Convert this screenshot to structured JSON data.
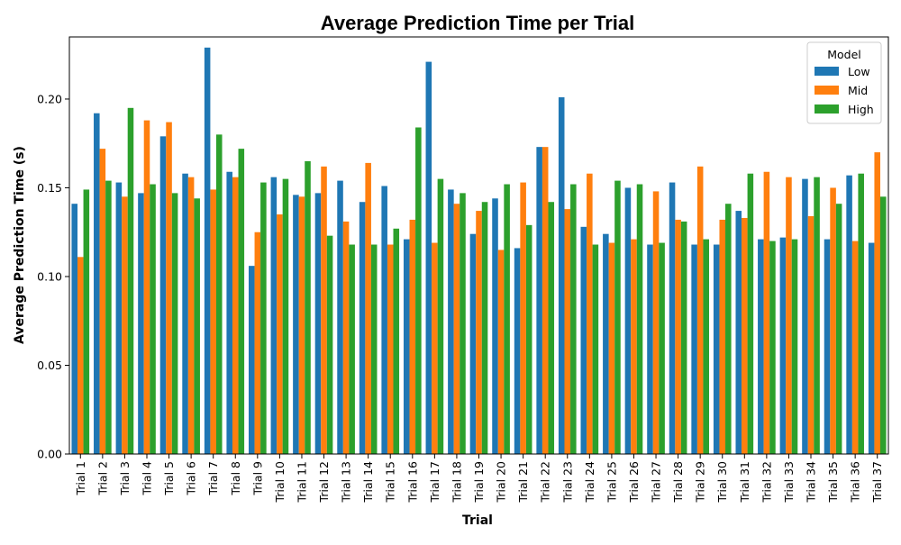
{
  "chart_data": {
    "type": "bar",
    "title": "Average Prediction Time per Trial",
    "xlabel": "Trial",
    "ylabel": "Average Prediction Time (s)",
    "ylim": [
      0,
      0.235
    ],
    "yticks": [
      "0.00",
      "0.05",
      "0.10",
      "0.15",
      "0.20"
    ],
    "grid": false,
    "legend": {
      "title": "Model",
      "placement": "top-right"
    },
    "categories": [
      "Trial 1",
      "Trial 2",
      "Trial 3",
      "Trial 4",
      "Trial 5",
      "Trial 6",
      "Trial 7",
      "Trial 8",
      "Trial 9",
      "Trial 10",
      "Trial 11",
      "Trial 12",
      "Trial 13",
      "Trial 14",
      "Trial 15",
      "Trial 16",
      "Trial 17",
      "Trial 18",
      "Trial 19",
      "Trial 20",
      "Trial 21",
      "Trial 22",
      "Trial 23",
      "Trial 24",
      "Trial 25",
      "Trial 26",
      "Trial 27",
      "Trial 28",
      "Trial 29",
      "Trial 30",
      "Trial 31",
      "Trial 32",
      "Trial 33",
      "Trial 34",
      "Trial 35",
      "Trial 36",
      "Trial 37"
    ],
    "series": [
      {
        "name": "Low",
        "color": "#1f77b4",
        "values": [
          0.141,
          0.192,
          0.153,
          0.147,
          0.179,
          0.158,
          0.229,
          0.159,
          0.106,
          0.156,
          0.146,
          0.147,
          0.154,
          0.142,
          0.151,
          0.121,
          0.221,
          0.149,
          0.124,
          0.144,
          0.116,
          0.173,
          0.201,
          0.128,
          0.124,
          0.15,
          0.118,
          0.153,
          0.118,
          0.118,
          0.137,
          0.121,
          0.122,
          0.155,
          0.121,
          0.157,
          0.119
        ]
      },
      {
        "name": "Mid",
        "color": "#ff7f0e",
        "values": [
          0.111,
          0.172,
          0.145,
          0.188,
          0.187,
          0.156,
          0.149,
          0.156,
          0.125,
          0.135,
          0.145,
          0.162,
          0.131,
          0.164,
          0.118,
          0.132,
          0.119,
          0.141,
          0.137,
          0.115,
          0.153,
          0.173,
          0.138,
          0.158,
          0.119,
          0.121,
          0.148,
          0.132,
          0.162,
          0.132,
          0.133,
          0.159,
          0.156,
          0.134,
          0.15,
          0.12,
          0.17
        ]
      },
      {
        "name": "High",
        "color": "#2ca02c",
        "values": [
          0.149,
          0.154,
          0.195,
          0.152,
          0.147,
          0.144,
          0.18,
          0.172,
          0.153,
          0.155,
          0.165,
          0.123,
          0.118,
          0.118,
          0.127,
          0.184,
          0.155,
          0.147,
          0.142,
          0.152,
          0.129,
          0.142,
          0.152,
          0.118,
          0.154,
          0.152,
          0.119,
          0.131,
          0.121,
          0.141,
          0.158,
          0.12,
          0.121,
          0.156,
          0.141,
          0.158,
          0.145
        ]
      }
    ]
  }
}
